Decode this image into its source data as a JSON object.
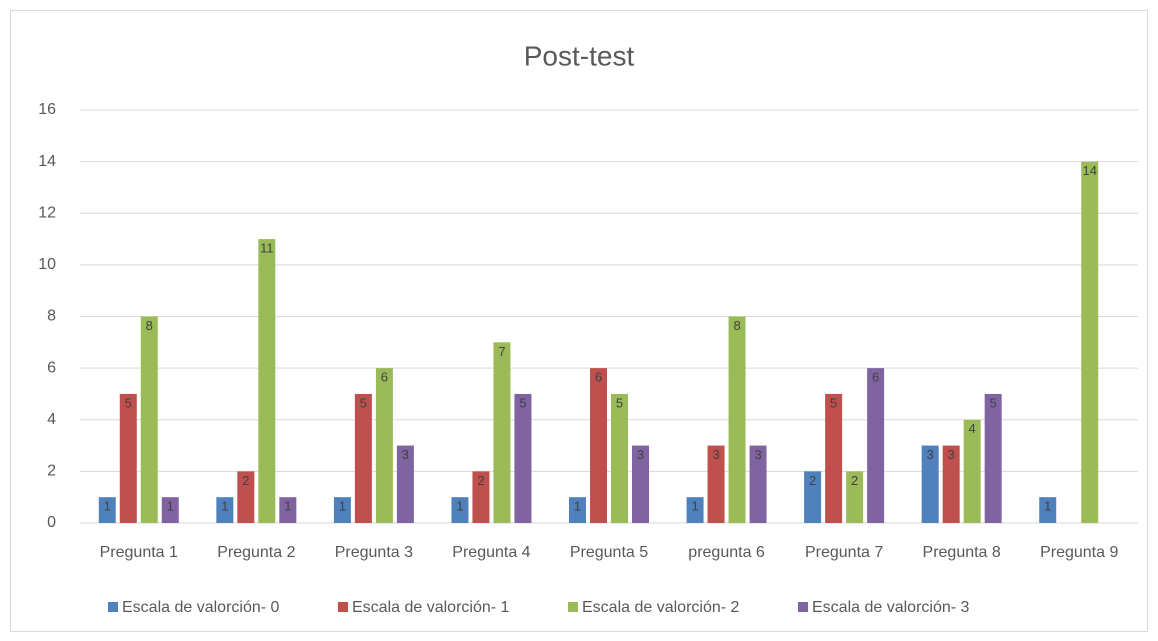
{
  "chart_data": {
    "type": "bar",
    "title": "Post-test",
    "categories": [
      "Pregunta 1",
      "Pregunta 2",
      "Pregunta 3",
      "Pregunta 4",
      "Pregunta 5",
      "pregunta 6",
      "Pregunta 7",
      "Pregunta 8",
      "Pregunta 9"
    ],
    "series": [
      {
        "name": "Escala de valorción- 0",
        "color": "#4f81bd",
        "values": [
          1,
          1,
          1,
          1,
          1,
          1,
          2,
          3,
          1
        ]
      },
      {
        "name": "Escala de valorción- 1",
        "color": "#c0504d",
        "values": [
          5,
          2,
          5,
          2,
          6,
          3,
          5,
          3,
          null
        ]
      },
      {
        "name": "Escala de valorción- 2",
        "color": "#9bbb59",
        "values": [
          8,
          11,
          6,
          7,
          5,
          8,
          2,
          4,
          14
        ]
      },
      {
        "name": "Escala de valorción- 3",
        "color": "#8064a2",
        "values": [
          1,
          1,
          3,
          5,
          3,
          3,
          6,
          5,
          null
        ]
      }
    ],
    "ylim": [
      0,
      16
    ],
    "yticks": [
      0,
      2,
      4,
      6,
      8,
      10,
      12,
      14,
      16
    ],
    "grid": true,
    "legend": "bottom"
  }
}
